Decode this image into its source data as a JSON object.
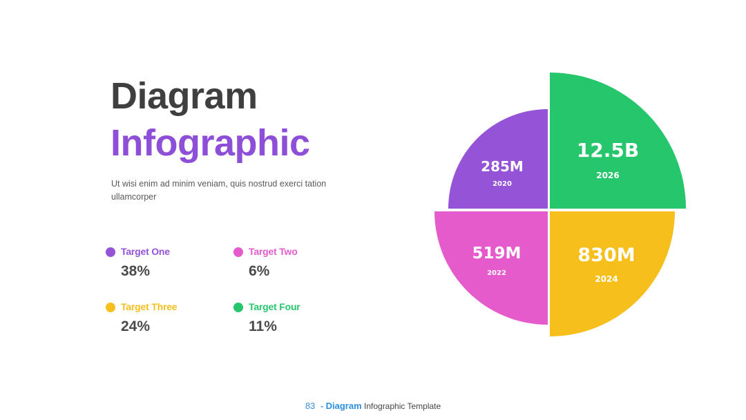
{
  "title": {
    "line1": "Diagram",
    "line2": "Infographic"
  },
  "description": "Ut wisi enim ad minim veniam, quis nostrud exerci tation ullamcorper",
  "colors": {
    "purple": "#9553d8",
    "green": "#26c66d",
    "pink": "#e55bcc",
    "yellow": "#f7bf1b",
    "title_dark": "#3f3f3f",
    "title_purple": "#8e4fd8"
  },
  "legend": [
    {
      "label": "Target One",
      "value": "38%",
      "color": "#9553d8"
    },
    {
      "label": "Target Two",
      "value": "6%",
      "color": "#e55bcc"
    },
    {
      "label": "Target Three",
      "value": "24%",
      "color": "#f7bf1b"
    },
    {
      "label": "Target Four",
      "value": "11%",
      "color": "#26c66d"
    }
  ],
  "chart_data": {
    "type": "pie",
    "quadrants": [
      {
        "value": "285M",
        "year": "2020",
        "color": "#9553d8",
        "position": "top-left"
      },
      {
        "value": "12.5B",
        "year": "2026",
        "color": "#26c66d",
        "position": "top-right"
      },
      {
        "value": "519M",
        "year": "2022",
        "color": "#e55bcc",
        "position": "bottom-left"
      },
      {
        "value": "830M",
        "year": "2024",
        "color": "#f7bf1b",
        "position": "bottom-right"
      }
    ]
  },
  "footer": {
    "page_number": "83",
    "dash": "-",
    "highlight": "Diagram",
    "rest": "Infographic Template"
  }
}
